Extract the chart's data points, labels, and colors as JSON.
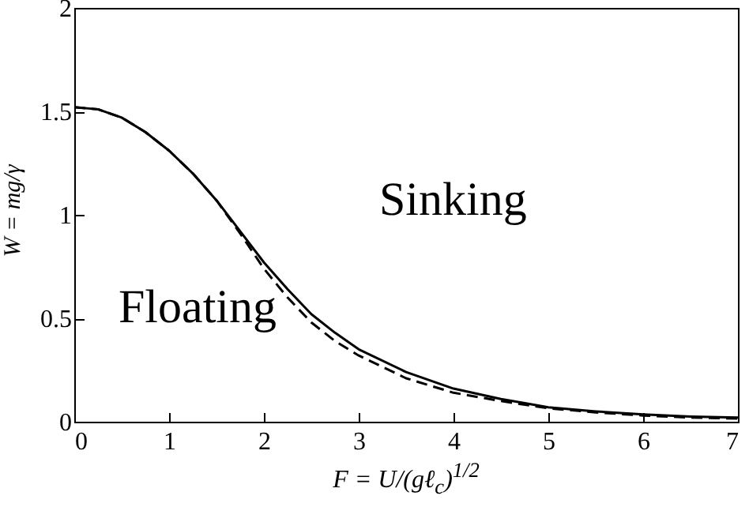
{
  "chart_data": {
    "type": "line",
    "xlabel": "F = U/(gℓ$_{c}$)$^{1/2}$",
    "ylabel": "W = mg/γ",
    "x": [
      0,
      0.25,
      0.5,
      0.75,
      1,
      1.25,
      1.5,
      1.75,
      2,
      2.25,
      2.5,
      2.75,
      3,
      3.5,
      4,
      4.5,
      5,
      5.5,
      6,
      6.5,
      7
    ],
    "series": [
      {
        "color": "#000000",
        "line_style": "solid",
        "values": [
          1.52,
          1.51,
          1.47,
          1.4,
          1.31,
          1.2,
          1.07,
          0.92,
          0.77,
          0.64,
          0.52,
          0.43,
          0.35,
          0.24,
          0.16,
          0.11,
          0.07,
          0.05,
          0.035,
          0.025,
          0.02
        ]
      },
      {
        "color": "#000000",
        "line_style": "dashed",
        "values": [
          1.52,
          1.51,
          1.47,
          1.4,
          1.31,
          1.2,
          1.07,
          0.91,
          0.74,
          0.6,
          0.48,
          0.39,
          0.32,
          0.21,
          0.14,
          0.1,
          0.065,
          0.045,
          0.03,
          0.02,
          0.015
        ]
      }
    ],
    "xlim": [
      0,
      7
    ],
    "xticks": [
      0,
      1,
      2,
      3,
      4,
      5,
      6,
      7
    ],
    "ylim": [
      0,
      2
    ],
    "yticks": [
      0,
      0.5,
      1,
      1.5,
      2
    ],
    "annotations": [
      "Sinking",
      "Floating"
    ],
    "tick_labels": "xy"
  }
}
